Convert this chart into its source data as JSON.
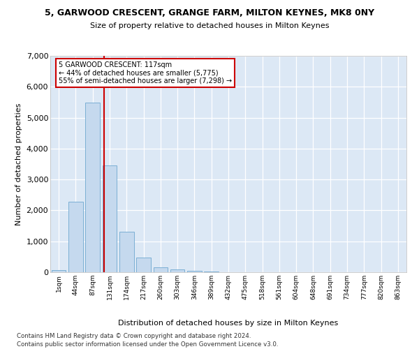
{
  "title": "5, GARWOOD CRESCENT, GRANGE FARM, MILTON KEYNES, MK8 0NY",
  "subtitle": "Size of property relative to detached houses in Milton Keynes",
  "xlabel": "Distribution of detached houses by size in Milton Keynes",
  "ylabel": "Number of detached properties",
  "bar_color": "#c5d9ee",
  "bar_edge_color": "#7bafd4",
  "bg_color": "#dce8f5",
  "grid_color": "#ffffff",
  "vline_color": "#cc0000",
  "annotation_text": "5 GARWOOD CRESCENT: 117sqm\n← 44% of detached houses are smaller (5,775)\n55% of semi-detached houses are larger (7,298) →",
  "annotation_box_color": "#ffffff",
  "annotation_box_edge": "#cc0000",
  "categories": [
    "1sqm",
    "44sqm",
    "87sqm",
    "131sqm",
    "174sqm",
    "217sqm",
    "260sqm",
    "303sqm",
    "346sqm",
    "389sqm",
    "432sqm",
    "475sqm",
    "518sqm",
    "561sqm",
    "604sqm",
    "648sqm",
    "691sqm",
    "734sqm",
    "777sqm",
    "820sqm",
    "863sqm"
  ],
  "bar_heights": [
    75,
    2280,
    5480,
    3450,
    1310,
    470,
    155,
    90,
    50,
    30,
    0,
    0,
    0,
    0,
    0,
    0,
    0,
    0,
    0,
    0,
    0
  ],
  "ylim": [
    0,
    7000
  ],
  "yticks": [
    0,
    1000,
    2000,
    3000,
    4000,
    5000,
    6000,
    7000
  ],
  "footnote1": "Contains HM Land Registry data © Crown copyright and database right 2024.",
  "footnote2": "Contains public sector information licensed under the Open Government Licence v3.0.",
  "vline_position": 2.68,
  "fig_facecolor": "#ffffff"
}
